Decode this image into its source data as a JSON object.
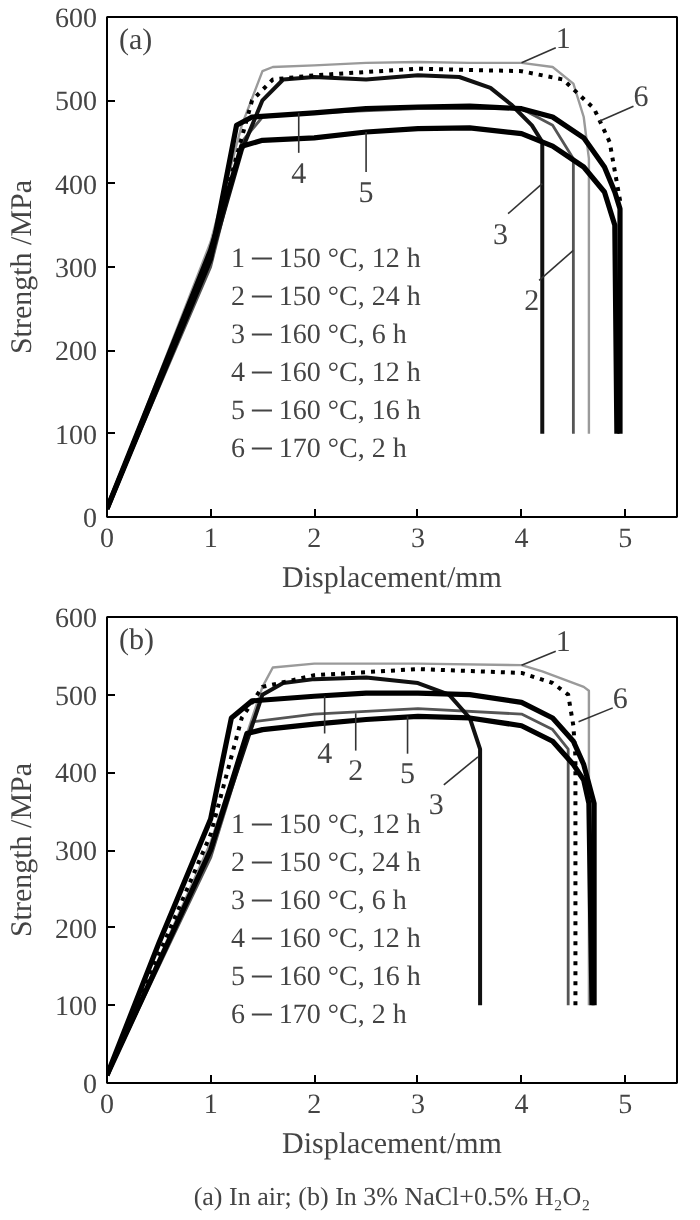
{
  "chart_data": [
    {
      "type": "line",
      "title": "(a)",
      "xlabel": "Displacement/mm",
      "ylabel": "Strength /MPa",
      "xlim": [
        0,
        5.5
      ],
      "ylim": [
        0,
        600
      ],
      "xticks": [
        0,
        1,
        2,
        3,
        4,
        5
      ],
      "yticks": [
        0,
        100,
        200,
        300,
        400,
        500,
        600
      ],
      "grid": false,
      "marker": "none",
      "line_style": "solid",
      "series": [
        {
          "color": "#9a9a9a",
          "x": [
            0,
            1,
            1.3,
            1.5,
            1.6,
            2,
            2.5,
            3,
            3.5,
            4,
            4.3,
            4.5,
            4.6,
            4.65,
            4.65
          ],
          "values": [
            10,
            330,
            470,
            535,
            540,
            542,
            545,
            546,
            545,
            545,
            540,
            520,
            480,
            430,
            100
          ]
        },
        {
          "color": "#555555",
          "x": [
            0,
            1,
            1.3,
            1.5,
            2,
            3,
            4,
            4.3,
            4.5,
            4.5
          ],
          "values": [
            10,
            300,
            450,
            480,
            485,
            490,
            490,
            470,
            430,
            100
          ]
        },
        {
          "color": "#111111",
          "x": [
            0,
            1,
            1.3,
            1.5,
            1.7,
            2,
            2.5,
            3,
            3.4,
            3.7,
            3.9,
            4.1,
            4.2,
            4.2
          ],
          "values": [
            10,
            310,
            440,
            500,
            525,
            528,
            525,
            530,
            528,
            515,
            495,
            470,
            450,
            100
          ]
        },
        {
          "color": "#000000",
          "x": [
            0,
            1,
            1.25,
            1.4,
            2,
            2.5,
            3,
            3.5,
            4,
            4.3,
            4.6,
            4.8,
            4.9,
            4.95,
            4.95
          ],
          "values": [
            10,
            310,
            470,
            480,
            485,
            490,
            492,
            493,
            490,
            480,
            455,
            420,
            390,
            370,
            100
          ]
        },
        {
          "color": "#000000",
          "x": [
            0,
            1,
            1.3,
            1.5,
            2,
            2.5,
            3,
            3.5,
            4,
            4.3,
            4.6,
            4.8,
            4.9,
            4.92
          ],
          "values": [
            10,
            320,
            445,
            452,
            455,
            462,
            466,
            467,
            460,
            445,
            420,
            390,
            350,
            100
          ]
        },
        {
          "color": "#000000",
          "line_style": "dotted",
          "x": [
            0,
            1,
            1.4,
            1.6,
            2,
            3,
            4,
            4.4,
            4.7,
            4.85,
            4.95,
            4.95
          ],
          "values": [
            10,
            320,
            500,
            525,
            530,
            538,
            535,
            525,
            490,
            450,
            380,
            100
          ]
        }
      ],
      "annotations": [
        "1 ─ 150 °C, 12 h",
        "2 ─ 150 °C, 24 h",
        "3 ─ 160 °C, 6 h",
        "4 ─ 160 °C, 12 h",
        "5 ─ 160 °C, 16 h",
        "6 ─ 170 °C, 2 h",
        {
          "text": "1",
          "x": 4.0,
          "y": 545
        },
        {
          "text": "6",
          "x": 4.75,
          "y": 475
        },
        {
          "text": "3",
          "x": 4.2,
          "y": 400
        },
        {
          "text": "2",
          "x": 4.5,
          "y": 320
        },
        {
          "text": "4",
          "x": 1.85,
          "y": 485
        },
        {
          "text": "5",
          "x": 2.5,
          "y": 462
        }
      ]
    },
    {
      "type": "line",
      "title": "(b)",
      "subtitle": "(a) In air; (b) In 3% NaCl+0.5% H₂O₂",
      "xlabel": "Displacement/mm",
      "ylabel": "Strength /MPa",
      "xlim": [
        0,
        5.5
      ],
      "ylim": [
        0,
        600
      ],
      "xticks": [
        0,
        1,
        2,
        3,
        4,
        5
      ],
      "yticks": [
        0,
        100,
        200,
        300,
        400,
        500,
        600
      ],
      "grid": false,
      "marker": "none",
      "line_style": "solid",
      "series": [
        {
          "color": "#9a9a9a",
          "x": [
            0,
            1,
            1.3,
            1.5,
            1.6,
            2,
            3,
            4,
            4.2,
            4.6,
            4.65,
            4.65
          ],
          "values": [
            10,
            310,
            430,
            510,
            535,
            540,
            540,
            538,
            530,
            510,
            505,
            100
          ]
        },
        {
          "color": "#555555",
          "x": [
            0,
            1,
            1.3,
            1.4,
            2,
            3,
            4,
            4.3,
            4.45,
            4.45
          ],
          "values": [
            10,
            290,
            420,
            465,
            475,
            482,
            475,
            455,
            430,
            100
          ]
        },
        {
          "color": "#111111",
          "x": [
            0,
            1,
            1.3,
            1.5,
            1.7,
            2,
            2.5,
            3,
            3.3,
            3.5,
            3.6,
            3.6
          ],
          "values": [
            10,
            300,
            420,
            500,
            515,
            520,
            522,
            515,
            500,
            470,
            430,
            100
          ]
        },
        {
          "color": "#000000",
          "x": [
            0,
            0.5,
            1,
            1.2,
            1.4,
            2,
            2.5,
            3,
            3.5,
            4,
            4.3,
            4.5,
            4.6,
            4.7,
            4.7
          ],
          "values": [
            10,
            180,
            340,
            470,
            492,
            498,
            502,
            502,
            500,
            490,
            470,
            440,
            410,
            360,
            100
          ]
        },
        {
          "color": "#000000",
          "x": [
            0,
            1,
            1.35,
            1.5,
            2,
            2.5,
            3,
            3.5,
            4,
            4.3,
            4.5,
            4.6,
            4.65,
            4.68
          ],
          "values": [
            10,
            300,
            450,
            455,
            462,
            468,
            472,
            470,
            460,
            440,
            410,
            390,
            360,
            100
          ]
        },
        {
          "color": "#000000",
          "line_style": "dotted",
          "x": [
            0,
            1,
            1.3,
            1.5,
            2,
            3,
            4,
            4.3,
            4.45,
            4.5,
            4.52,
            4.52
          ],
          "values": [
            10,
            320,
            470,
            510,
            525,
            533,
            528,
            515,
            500,
            460,
            420,
            100
          ]
        }
      ],
      "annotations": [
        "1 ─ 150 °C, 12 h",
        "2 ─ 150 °C, 24 h",
        "3 ─ 160 °C, 6 h",
        "4 ─ 160 °C, 12 h",
        "5 ─ 160 °C, 16 h",
        "6 ─ 170 °C, 2 h",
        {
          "text": "1",
          "x": 4.0,
          "y": 538
        },
        {
          "text": "6",
          "x": 4.55,
          "y": 465
        },
        {
          "text": "3",
          "x": 3.58,
          "y": 420
        },
        {
          "text": "4",
          "x": 2.1,
          "y": 498
        },
        {
          "text": "2",
          "x": 2.4,
          "y": 476
        },
        {
          "text": "5",
          "x": 2.9,
          "y": 472
        }
      ]
    }
  ]
}
